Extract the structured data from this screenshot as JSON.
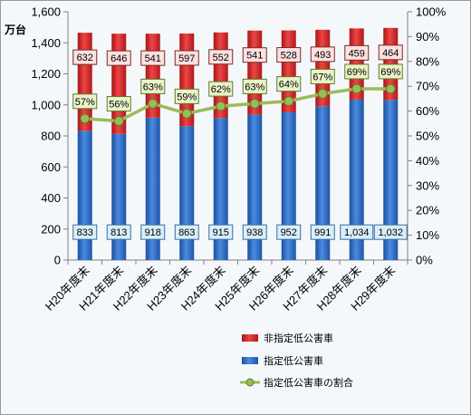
{
  "chart_data": {
    "type": "bar",
    "stacked": true,
    "unit_label": "万台",
    "categories": [
      "H20年度末",
      "H21年度末",
      "H22年度末",
      "H23年度末",
      "H24年度末",
      "H25年度末",
      "H26年度末",
      "H27年度末",
      "H28年度末",
      "H29年度末"
    ],
    "y_left": {
      "min": 0,
      "max": 1600,
      "step": 200,
      "tick_labels": [
        "0",
        "200",
        "400",
        "600",
        "800",
        "1,000",
        "1,200",
        "1,400",
        "1,600"
      ]
    },
    "y_right": {
      "min": 0,
      "max": 100,
      "step": 10,
      "tick_labels": [
        "0%",
        "10%",
        "20%",
        "30%",
        "40%",
        "50%",
        "60%",
        "70%",
        "80%",
        "90%",
        "100%"
      ]
    },
    "series": [
      {
        "name": "指定低公害車",
        "kind": "bar",
        "axis": "left",
        "color": "#2f6cc4",
        "values": [
          833,
          813,
          918,
          863,
          915,
          938,
          952,
          991,
          1034,
          1032
        ],
        "labels": [
          "833",
          "813",
          "918",
          "863",
          "915",
          "938",
          "952",
          "991",
          "1,034",
          "1,032"
        ]
      },
      {
        "name": "非指定低公害車",
        "kind": "bar",
        "axis": "left",
        "color": "#d42a2a",
        "values": [
          632,
          646,
          541,
          597,
          552,
          541,
          528,
          493,
          459,
          464
        ],
        "labels": [
          "632",
          "646",
          "541",
          "597",
          "552",
          "541",
          "528",
          "493",
          "459",
          "464"
        ]
      },
      {
        "name": "指定低公害車の割合",
        "kind": "line",
        "axis": "right",
        "color": "#9bbb59",
        "values": [
          57,
          56,
          63,
          59,
          62,
          63,
          64,
          67,
          69,
          69
        ],
        "labels": [
          "57%",
          "56%",
          "63%",
          "59%",
          "62%",
          "63%",
          "64%",
          "67%",
          "69%",
          "69%"
        ]
      }
    ],
    "legend": [
      "非指定低公害車",
      "指定低公害車",
      "指定低公害車の割合"
    ],
    "legend_position": "bottom-right",
    "grid": false
  }
}
